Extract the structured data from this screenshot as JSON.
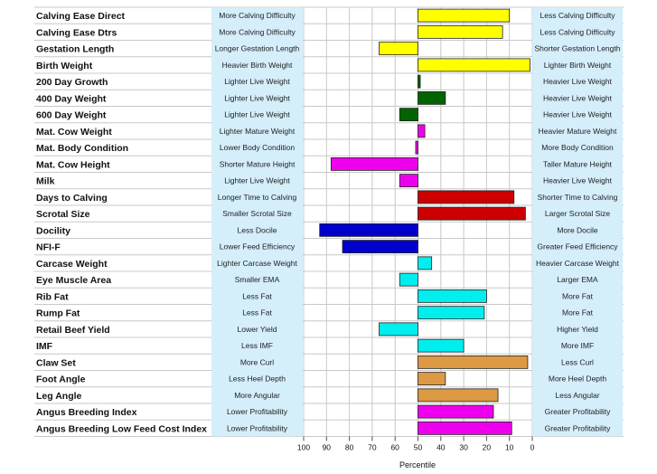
{
  "chart_data": {
    "type": "bar",
    "orientation": "horizontal",
    "xlabel": "Percentile",
    "xlim": [
      100,
      0
    ],
    "x_ticks": [
      "100",
      "90",
      "80",
      "70",
      "60",
      "50",
      "40",
      "30",
      "20",
      "10",
      "0"
    ],
    "baseline": 50,
    "grid": true,
    "rows": [
      {
        "trait": "Calving Ease Direct",
        "left": "More Calving Difficulty",
        "right": "Less Calving Difficulty",
        "value": 10,
        "color": "#ffff00"
      },
      {
        "trait": "Calving Ease Dtrs",
        "left": "More Calving Difficulty",
        "right": "Less Calving Difficulty",
        "value": 13,
        "color": "#ffff00"
      },
      {
        "trait": "Gestation Length",
        "left": "Longer Gestation Length",
        "right": "Shorter Gestation Length",
        "value": 67,
        "color": "#ffff00"
      },
      {
        "trait": "Birth Weight",
        "left": "Heavier Birth Weight",
        "right": "Lighter Birth Weight",
        "value": 1,
        "color": "#ffff00"
      },
      {
        "trait": "200 Day Growth",
        "left": "Lighter Live Weight",
        "right": "Heavier Live Weight",
        "value": 49,
        "color": "#006400"
      },
      {
        "trait": "400 Day Weight",
        "left": "Lighter Live Weight",
        "right": "Heavier Live Weight",
        "value": 38,
        "color": "#006400"
      },
      {
        "trait": "600 Day Weight",
        "left": "Lighter Live Weight",
        "right": "Heavier Live Weight",
        "value": 58,
        "color": "#006400"
      },
      {
        "trait": "Mat. Cow Weight",
        "left": "Lighter Mature Weight",
        "right": "Heavier Mature Weight",
        "value": 47,
        "color": "#ee00ee"
      },
      {
        "trait": "Mat. Body Condition",
        "left": "Lower Body Condition",
        "right": "More Body Condition",
        "value": 51,
        "color": "#ee00ee"
      },
      {
        "trait": "Mat. Cow Height",
        "left": "Shorter Mature Height",
        "right": "Taller Mature Height",
        "value": 88,
        "color": "#ee00ee"
      },
      {
        "trait": "Milk",
        "left": "Lighter Live Weight",
        "right": "Heavier Live Weight",
        "value": 58,
        "color": "#ee00ee"
      },
      {
        "trait": "Days to Calving",
        "left": "Longer Time to Calving",
        "right": "Shorter Time to Calving",
        "value": 8,
        "color": "#cc0000"
      },
      {
        "trait": "Scrotal Size",
        "left": "Smaller Scrotal Size",
        "right": "Larger Scrotal Size",
        "value": 3,
        "color": "#cc0000"
      },
      {
        "trait": "Docility",
        "left": "Less Docile",
        "right": "More Docile",
        "value": 93,
        "color": "#0000cc"
      },
      {
        "trait": "NFI-F",
        "left": "Lower Feed Efficiency",
        "right": "Greater Feed Efficiency",
        "value": 83,
        "color": "#0000cc"
      },
      {
        "trait": "Carcase Weight",
        "left": "Lighter Carcase Weight",
        "right": "Heavier Carcase Weight",
        "value": 44,
        "color": "#00eeee"
      },
      {
        "trait": "Eye Muscle Area",
        "left": "Smaller EMA",
        "right": "Larger EMA",
        "value": 58,
        "color": "#00eeee"
      },
      {
        "trait": "Rib Fat",
        "left": "Less Fat",
        "right": "More Fat",
        "value": 20,
        "color": "#00eeee"
      },
      {
        "trait": "Rump Fat",
        "left": "Less Fat",
        "right": "More Fat",
        "value": 21,
        "color": "#00eeee"
      },
      {
        "trait": "Retail Beef Yield",
        "left": "Lower Yield",
        "right": "Higher Yield",
        "value": 67,
        "color": "#00eeee"
      },
      {
        "trait": "IMF",
        "left": "Less IMF",
        "right": "More IMF",
        "value": 30,
        "color": "#00eeee"
      },
      {
        "trait": "Claw Set",
        "left": "More Curl",
        "right": "Less Curl",
        "value": 2,
        "color": "#dd9944"
      },
      {
        "trait": "Foot Angle",
        "left": "Less Heel Depth",
        "right": "More Heel Depth",
        "value": 38,
        "color": "#dd9944"
      },
      {
        "trait": "Leg Angle",
        "left": "More Angular",
        "right": "Less Angular",
        "value": 15,
        "color": "#dd9944"
      },
      {
        "trait": "Angus Breeding Index",
        "left": "Lower Profitability",
        "right": "Greater Profitability",
        "value": 17,
        "color": "#ee00ee"
      },
      {
        "trait": "Angus Breeding Low Feed Cost Index",
        "left": "Lower Profitability",
        "right": "Greater Profitability",
        "value": 9,
        "color": "#ee00ee"
      }
    ]
  },
  "colors": {
    "desc_bg": "#d4eefa",
    "grid": "#c8c8c8",
    "bar_stroke": "#222222"
  }
}
